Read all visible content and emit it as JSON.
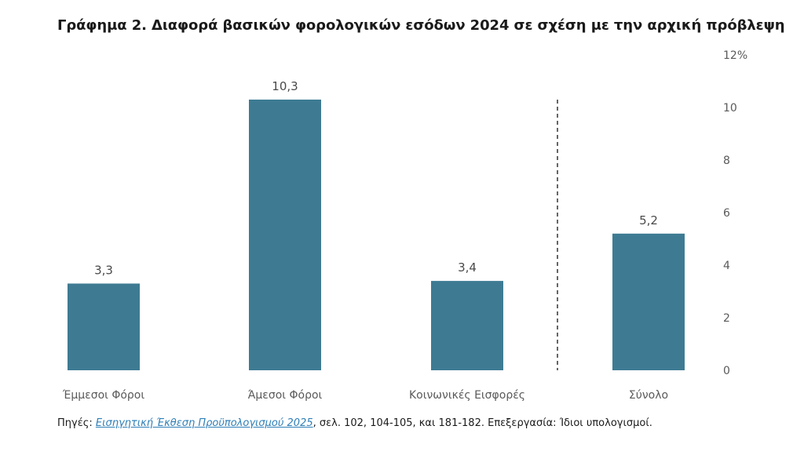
{
  "title": "Γράφημα 2. Διαφορά βασικών φορολογικών εσόδων 2024 σε σχέση με την αρχική πρόβλεψη",
  "chart_data": {
    "type": "bar",
    "categories": [
      "Έμμεσοι Φόροι",
      "Άμεσοι Φόροι",
      "Κοινωνικές Εισφορές",
      "Σύνολο"
    ],
    "values": [
      3.3,
      10.3,
      3.4,
      5.2
    ],
    "value_labels": [
      "3,3",
      "10,3",
      "3,4",
      "5,2"
    ],
    "ylim": [
      0,
      12
    ],
    "y_ticks": [
      0,
      2,
      4,
      6,
      8,
      10,
      12
    ],
    "y_tick_labels": [
      "0",
      "2",
      "4",
      "6",
      "8",
      "10",
      "12%"
    ],
    "y_axis_position": "right",
    "grid": false,
    "separator_before_category": "Σύνολο",
    "bar_color": "#3e7b93"
  },
  "source": {
    "prefix": "Πηγές: ",
    "link_text": "Εισηγητική Έκθεση Προϋπολογισμού 2025",
    "suffix": ", σελ.  102, 104-105, και 181-182. Επεξεργασία: Ίδιοι υπολογισμοί."
  }
}
